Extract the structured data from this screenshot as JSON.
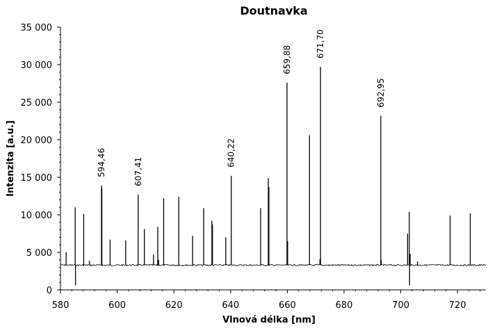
{
  "chart_data": {
    "type": "line",
    "title": "Doutnavka",
    "xlabel": "Vlnová délka [nm]",
    "ylabel": "Intenzita [a.u.]",
    "xlim": [
      580,
      730
    ],
    "ylim": [
      0,
      35000
    ],
    "x_ticks": [
      580,
      600,
      620,
      640,
      660,
      680,
      700,
      720
    ],
    "x_tick_labels": [
      "580",
      "600",
      "620",
      "640",
      "660",
      "680",
      "700",
      "720"
    ],
    "y_ticks": [
      0,
      5000,
      10000,
      15000,
      20000,
      25000,
      30000,
      35000
    ],
    "y_tick_labels": [
      "0",
      "5 000",
      "10 000",
      "15 000",
      "20 000",
      "25 000",
      "30 000",
      "35 000"
    ],
    "grid": false,
    "baseline": 3300,
    "series": [
      {
        "peaks": [
          {
            "x": 582.0,
            "y": 5000
          },
          {
            "x": 585.2,
            "y": 11000
          },
          {
            "x": 585.3,
            "y": 600
          },
          {
            "x": 588.2,
            "y": 10100
          },
          {
            "x": 590.2,
            "y": 3900
          },
          {
            "x": 594.46,
            "y": 13900
          },
          {
            "x": 594.6,
            "y": 13500
          },
          {
            "x": 597.5,
            "y": 6700
          },
          {
            "x": 603.0,
            "y": 6600
          },
          {
            "x": 607.41,
            "y": 12700
          },
          {
            "x": 609.6,
            "y": 8100
          },
          {
            "x": 612.8,
            "y": 4700
          },
          {
            "x": 614.3,
            "y": 8400
          },
          {
            "x": 614.6,
            "y": 4000
          },
          {
            "x": 616.4,
            "y": 12200
          },
          {
            "x": 621.7,
            "y": 12400
          },
          {
            "x": 626.6,
            "y": 7200
          },
          {
            "x": 630.5,
            "y": 10900
          },
          {
            "x": 633.4,
            "y": 9200
          },
          {
            "x": 633.6,
            "y": 8700
          },
          {
            "x": 638.3,
            "y": 7000
          },
          {
            "x": 640.22,
            "y": 15200
          },
          {
            "x": 650.6,
            "y": 10900
          },
          {
            "x": 653.3,
            "y": 14900
          },
          {
            "x": 653.5,
            "y": 13700
          },
          {
            "x": 659.88,
            "y": 27600
          },
          {
            "x": 660.1,
            "y": 6500
          },
          {
            "x": 667.8,
            "y": 20600
          },
          {
            "x": 671.5,
            "y": 4100
          },
          {
            "x": 671.7,
            "y": 29700
          },
          {
            "x": 692.95,
            "y": 23200
          },
          {
            "x": 693.1,
            "y": 4000
          },
          {
            "x": 702.4,
            "y": 7500
          },
          {
            "x": 703.0,
            "y": 10400
          },
          {
            "x": 703.1,
            "y": 600
          },
          {
            "x": 703.3,
            "y": 4800
          },
          {
            "x": 705.9,
            "y": 3800
          },
          {
            "x": 717.4,
            "y": 9900
          },
          {
            "x": 724.5,
            "y": 10200
          }
        ]
      }
    ],
    "annotations": [
      {
        "text": "594,46",
        "x": 594.46,
        "y": 13900
      },
      {
        "text": "607,41",
        "x": 607.41,
        "y": 12700
      },
      {
        "text": "640,22",
        "x": 640.22,
        "y": 15200
      },
      {
        "text": "659,88",
        "x": 659.88,
        "y": 27600
      },
      {
        "text": "671,70",
        "x": 671.7,
        "y": 29700
      },
      {
        "text": "692,95",
        "x": 692.95,
        "y": 23200
      }
    ]
  }
}
